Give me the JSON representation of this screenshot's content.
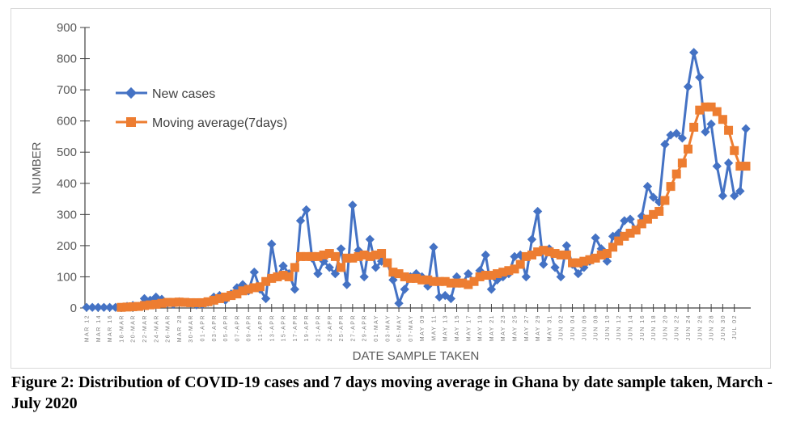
{
  "caption": "Figure 2: Distribution of COVID-19 cases and 7 days moving average in Ghana by date sample taken, March - July 2020",
  "chart_data": {
    "type": "line",
    "title": "",
    "xlabel": "DATE SAMPLE TAKEN",
    "ylabel": "NUMBER",
    "ylim": [
      0,
      900
    ],
    "yticks": [
      0,
      100,
      200,
      300,
      400,
      500,
      600,
      700,
      800,
      900
    ],
    "grid": false,
    "legend_position": "top-left",
    "x_start_date": "Mar 12",
    "x_end_date": "Jul 02",
    "x_tick_labels": [
      "MAR 12",
      "MAR 14",
      "MAR 16",
      "18-MAR",
      "20-MAR",
      "22-MAR",
      "24-MAR",
      "26-MAR",
      "MAR 28",
      "30-MAR",
      "01-APR",
      "03-APR",
      "05-APR",
      "07-APR",
      "09-APR",
      "11-APR",
      "13-APR",
      "15-APR",
      "17-APR",
      "19-APR",
      "21-APR",
      "23-APR",
      "25-APR",
      "27-APR",
      "29-APR",
      "01-MAY",
      "03-MAY",
      "05-MAY",
      "07-MAY",
      "MAY 09",
      "MAY 11",
      "MAY 13",
      "MAY 15",
      "MAY 17",
      "MAY 19",
      "MAY 21",
      "MAY 23",
      "MAY 25",
      "MAY 27",
      "MAY 29",
      "MAY 31",
      "JUN 02",
      "JUN 04",
      "JUN 06",
      "JUN 08",
      "JUN 10",
      "JUN 12",
      "JUN 14",
      "JUN 16",
      "JUN 18",
      "JUN 20",
      "JUN 22",
      "JUN 24",
      "JUN 26",
      "JUN 28",
      "JUN 30",
      "JUL 02"
    ],
    "series": [
      {
        "name": "New cases",
        "color": "#4472c4",
        "marker": "diamond",
        "values": [
          2,
          2,
          2,
          2,
          2,
          2,
          2,
          5,
          8,
          5,
          30,
          25,
          35,
          28,
          15,
          12,
          20,
          18,
          15,
          10,
          12,
          18,
          35,
          40,
          25,
          45,
          65,
          75,
          55,
          115,
          60,
          30,
          205,
          100,
          135,
          110,
          60,
          280,
          315,
          160,
          110,
          150,
          130,
          110,
          190,
          75,
          330,
          185,
          100,
          220,
          130,
          150,
          145,
          90,
          15,
          60,
          100,
          110,
          100,
          70,
          195,
          35,
          40,
          30,
          100,
          80,
          110,
          85,
          120,
          170,
          60,
          90,
          100,
          110,
          165,
          170,
          100,
          220,
          310,
          140,
          190,
          130,
          100,
          200,
          140,
          110,
          130,
          150,
          225,
          190,
          150,
          230,
          240,
          280,
          285,
          250,
          295,
          390,
          355,
          340,
          525,
          555,
          560,
          545,
          710,
          820,
          740,
          565,
          590,
          455,
          360,
          465,
          360,
          375,
          575
        ]
      },
      {
        "name": "Moving average(7days)",
        "color": "#ed7d31",
        "marker": "square",
        "values": [
          null,
          null,
          null,
          null,
          null,
          null,
          2,
          3,
          4,
          5,
          8,
          10,
          12,
          15,
          18,
          18,
          19,
          18,
          17,
          17,
          17,
          20,
          25,
          30,
          35,
          40,
          45,
          55,
          60,
          65,
          68,
          85,
          95,
          100,
          105,
          100,
          130,
          165,
          165,
          165,
          165,
          170,
          175,
          165,
          130,
          160,
          160,
          165,
          170,
          165,
          170,
          175,
          145,
          115,
          110,
          100,
          95,
          95,
          90,
          90,
          85,
          85,
          85,
          80,
          80,
          80,
          75,
          85,
          100,
          105,
          105,
          110,
          115,
          120,
          125,
          140,
          165,
          170,
          180,
          185,
          180,
          175,
          170,
          170,
          145,
          145,
          150,
          155,
          160,
          170,
          175,
          195,
          215,
          230,
          240,
          250,
          270,
          285,
          300,
          310,
          345,
          390,
          430,
          465,
          510,
          580,
          635,
          645,
          645,
          630,
          605,
          570,
          505,
          455,
          455
        ]
      }
    ]
  }
}
